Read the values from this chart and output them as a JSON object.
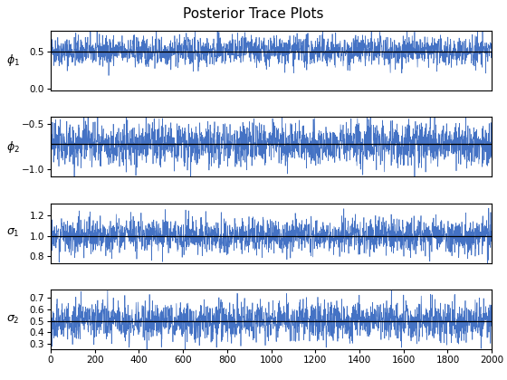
{
  "title": "Posterior Trace Plots",
  "n_samples": 2000,
  "phi1_mean": 0.5,
  "phi1_std": 0.1,
  "phi1_ylim": [
    -0.02,
    0.78
  ],
  "phi1_yticks": [
    0,
    0.5
  ],
  "phi1_const": 0.5,
  "phi1_ylabel": "$\\phi_1$",
  "phi2_mean": -0.72,
  "phi2_std": 0.12,
  "phi2_ylim": [
    -1.08,
    -0.42
  ],
  "phi2_yticks": [
    -1,
    -0.5
  ],
  "phi2_const": -0.72,
  "phi2_ylabel": "$\\phi_2$",
  "sigma1_mean": 1.0,
  "sigma1_std": 0.085,
  "sigma1_ylim": [
    0.73,
    1.32
  ],
  "sigma1_yticks": [
    0.8,
    1.0,
    1.2
  ],
  "sigma1_const": 1.0,
  "sigma1_ylabel": "$\\sigma_1$",
  "sigma2_mean": 0.5,
  "sigma2_std": 0.085,
  "sigma2_ylim": [
    0.25,
    0.77
  ],
  "sigma2_yticks": [
    0.3,
    0.4,
    0.5,
    0.6,
    0.7
  ],
  "sigma2_const": 0.5,
  "sigma2_ylabel": "$\\sigma_2$",
  "line_color": "#4472C4",
  "const_color": "black",
  "xlim": [
    0,
    2000
  ],
  "xticks": [
    0,
    200,
    400,
    600,
    800,
    1000,
    1200,
    1400,
    1600,
    1800,
    2000
  ],
  "seed": 42,
  "figsize": [
    5.6,
    4.2
  ],
  "dpi": 100
}
